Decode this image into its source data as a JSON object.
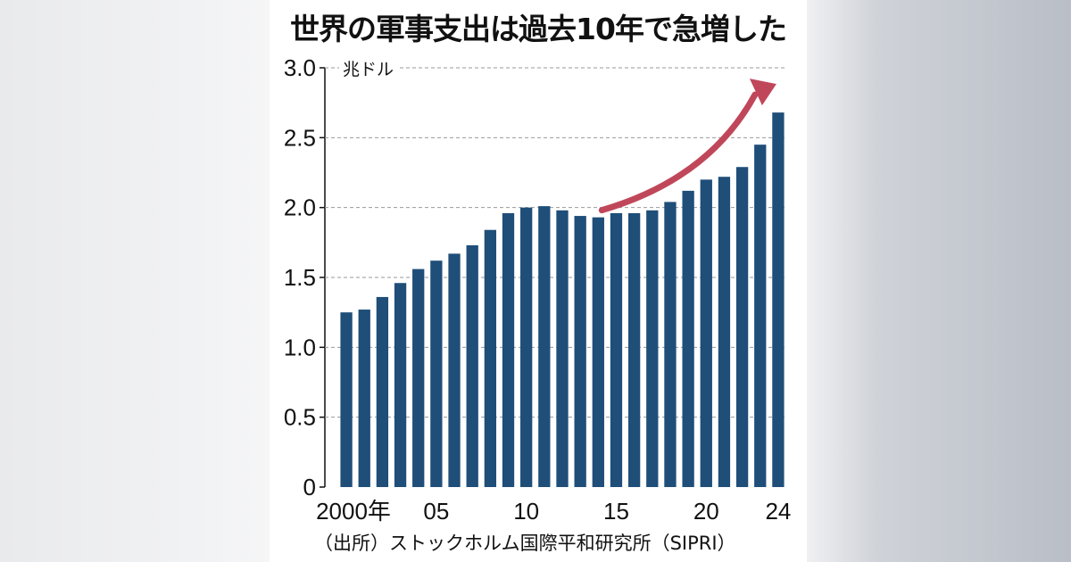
{
  "chart_data": {
    "type": "bar",
    "title": "世界の軍事支出は過去10年で急増した",
    "ylabel": "兆ドル",
    "xlabel": "",
    "ylim": [
      0,
      3.0
    ],
    "yticks": [
      {
        "value": 0,
        "label": "0"
      },
      {
        "value": 0.5,
        "label": "0.5"
      },
      {
        "value": 1.0,
        "label": "1.0"
      },
      {
        "value": 1.5,
        "label": "1.5"
      },
      {
        "value": 2.0,
        "label": "2.0"
      },
      {
        "value": 2.5,
        "label": "2.5"
      },
      {
        "value": 3.0,
        "label": "3.0"
      }
    ],
    "categories": [
      2000,
      2001,
      2002,
      2003,
      2004,
      2005,
      2006,
      2007,
      2008,
      2009,
      2010,
      2011,
      2012,
      2013,
      2014,
      2015,
      2016,
      2017,
      2018,
      2019,
      2020,
      2021,
      2022,
      2023,
      2024
    ],
    "values": [
      1.25,
      1.27,
      1.36,
      1.46,
      1.56,
      1.62,
      1.67,
      1.73,
      1.84,
      1.96,
      2.0,
      2.01,
      1.98,
      1.94,
      1.93,
      1.96,
      1.96,
      1.98,
      2.04,
      2.12,
      2.2,
      2.22,
      2.29,
      2.45,
      2.68
    ],
    "xticks": [
      {
        "year": 2000,
        "label": "2000年"
      },
      {
        "year": 2005,
        "label": "05"
      },
      {
        "year": 2010,
        "label": "10"
      },
      {
        "year": 2015,
        "label": "15"
      },
      {
        "year": 2020,
        "label": "20"
      },
      {
        "year": 2024,
        "label": "24"
      }
    ],
    "grid": true,
    "annotation": {
      "type": "arrow",
      "from_year": 2014,
      "to_year": 2024,
      "color": "#c0475a"
    },
    "bar_color": "#1f4e79",
    "source": "（出所）ストックホルム国際平和研究所（SIPRI）"
  }
}
